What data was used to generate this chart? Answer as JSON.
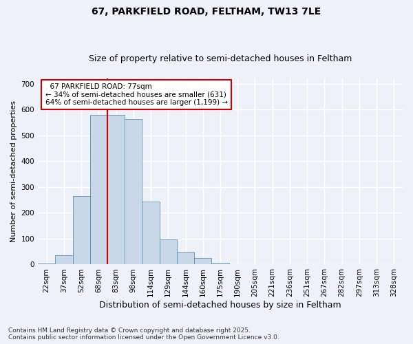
{
  "title1": "67, PARKFIELD ROAD, FELTHAM, TW13 7LE",
  "title2": "Size of property relative to semi-detached houses in Feltham",
  "xlabel": "Distribution of semi-detached houses by size in Feltham",
  "ylabel": "Number of semi-detached properties",
  "footnote1": "Contains HM Land Registry data © Crown copyright and database right 2025.",
  "footnote2": "Contains public sector information licensed under the Open Government Licence v3.0.",
  "bar_labels": [
    "22sqm",
    "37sqm",
    "52sqm",
    "68sqm",
    "83sqm",
    "98sqm",
    "114sqm",
    "129sqm",
    "144sqm",
    "160sqm",
    "175sqm",
    "190sqm",
    "205sqm",
    "221sqm",
    "236sqm",
    "251sqm",
    "267sqm",
    "282sqm",
    "297sqm",
    "313sqm",
    "328sqm"
  ],
  "bar_values": [
    5,
    35,
    265,
    578,
    578,
    562,
    243,
    98,
    50,
    25,
    7,
    2,
    1,
    0,
    0,
    0,
    0,
    0,
    0,
    0,
    0
  ],
  "bar_color": "#c8d8e8",
  "bar_edgecolor": "#6090b0",
  "property_line_x": 4,
  "property_line_label": "67 PARKFIELD ROAD: 77sqm",
  "pct_smaller": "34%",
  "pct_larger": "64%",
  "n_smaller": 631,
  "n_larger": 1199,
  "annotation_box_color": "#cc0000",
  "vertical_line_color": "#cc0000",
  "ylim": [
    0,
    720
  ],
  "yticks": [
    0,
    100,
    200,
    300,
    400,
    500,
    600,
    700
  ],
  "bg_color": "#eef2f8",
  "grid_color": "#ffffff",
  "title1_fontsize": 10,
  "title2_fontsize": 9,
  "xlabel_fontsize": 9,
  "ylabel_fontsize": 8,
  "tick_fontsize": 7.5,
  "annot_fontsize": 7.5,
  "footnote_fontsize": 6.5
}
